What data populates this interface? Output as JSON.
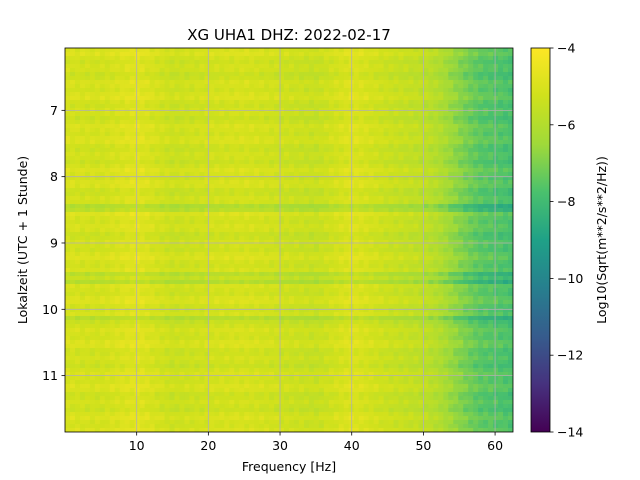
{
  "chart_data": {
    "type": "heatmap",
    "title": "XG UHA1  DHZ: 2022-02-17",
    "xlabel": "Frequency [Hz]",
    "ylabel": "Lokalzeit (UTC + 1 Stunde)",
    "colorbar_label": "Log10(Sqrt(m**2/s**2/Hz))",
    "colormap": "viridis",
    "xlim": [
      0.0,
      62.5
    ],
    "ylim": [
      6.06,
      11.85
    ],
    "y_inverted": true,
    "clim": [
      -14,
      -4
    ],
    "grid": true,
    "xticks": [
      10,
      20,
      30,
      40,
      50,
      60
    ],
    "xtick_labels": [
      "10",
      "20",
      "30",
      "40",
      "50",
      "60"
    ],
    "yticks": [
      7,
      8,
      9,
      10,
      11
    ],
    "ytick_labels": [
      "7",
      "8",
      "9",
      "10",
      "11"
    ],
    "cticks": [
      -4,
      -6,
      -8,
      -10,
      -12,
      -14
    ],
    "ctick_labels": [
      "−4",
      "−6",
      "−8",
      "−10",
      "−12",
      "−14"
    ],
    "profile_freq_hz": [
      0,
      5,
      10,
      15,
      20,
      25,
      30,
      35,
      40,
      45,
      50,
      52,
      54,
      56,
      58,
      60,
      62.5
    ],
    "profile_log10_amplitude": [
      -5.1,
      -5.2,
      -4.8,
      -5.4,
      -5.2,
      -5.1,
      -5.3,
      -5.5,
      -4.9,
      -5.4,
      -5.7,
      -6.0,
      -6.6,
      -7.1,
      -7.5,
      -7.6,
      -7.8
    ],
    "darker_bands_local_hour": [
      9.47,
      9.6,
      8.48,
      10.15
    ],
    "darker_band_offset": -0.7
  }
}
